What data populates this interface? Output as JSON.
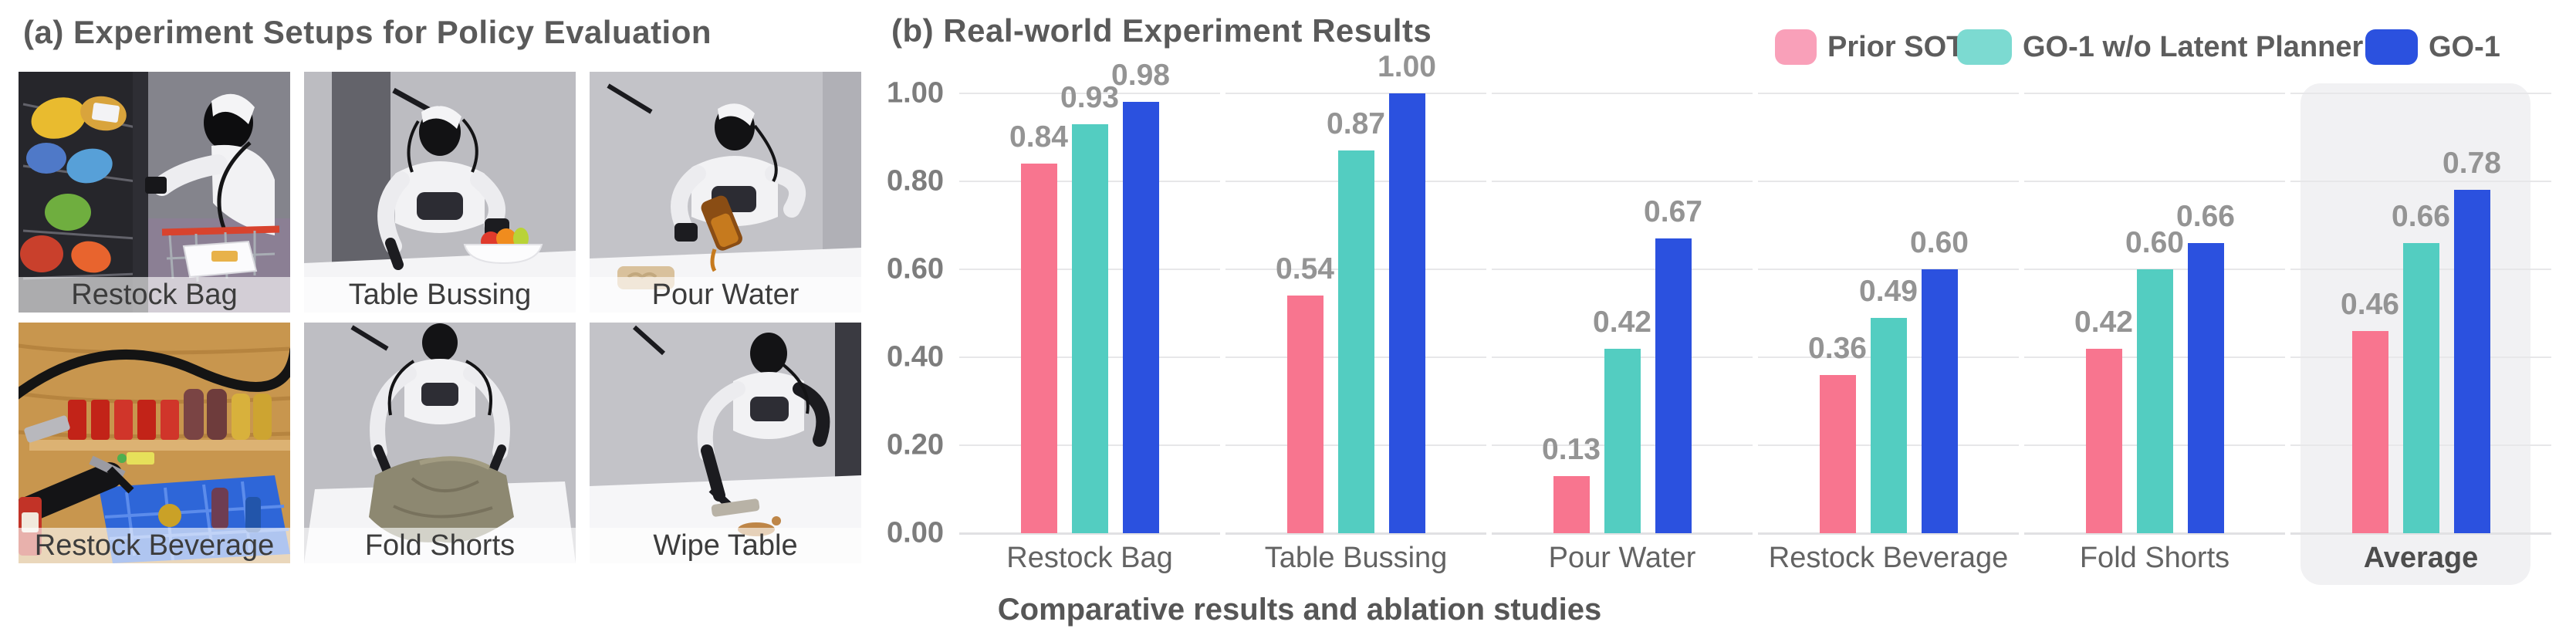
{
  "panel_a": {
    "title": "(a) Experiment Setups for Policy Evaluation",
    "tiles": [
      {
        "label": "Restock Bag",
        "scene": "restock-bag"
      },
      {
        "label": "Table Bussing",
        "scene": "table-bussing"
      },
      {
        "label": "Pour Water",
        "scene": "pour-water"
      },
      {
        "label": "Restock Beverage",
        "scene": "restock-beverage"
      },
      {
        "label": "Fold Shorts",
        "scene": "fold-shorts"
      },
      {
        "label": "Wipe Table",
        "scene": "wipe-table"
      }
    ]
  },
  "panel_b": {
    "title": "(b) Real-world Experiment Results"
  },
  "chart_data": {
    "type": "bar",
    "title": "(b) Real-world Experiment Results",
    "categories": [
      "Restock Bag",
      "Table Bussing",
      "Pour Water",
      "Restock Beverage",
      "Fold Shorts",
      "Average"
    ],
    "series": [
      {
        "name": "Prior SOTA",
        "color": "#F8758F",
        "legend_color": "#F9A0B9",
        "values": [
          0.84,
          0.54,
          0.13,
          0.36,
          0.42,
          0.46
        ]
      },
      {
        "name": "GO-1 w/o Latent Planner",
        "color": "#53CDC1",
        "legend_color": "#7CDAD1",
        "values": [
          0.93,
          0.87,
          0.42,
          0.49,
          0.6,
          0.66
        ]
      },
      {
        "name": "GO-1",
        "color": "#2B51DF",
        "legend_color": "#2B51DF",
        "values": [
          0.98,
          1.0,
          0.67,
          0.6,
          0.66,
          0.78
        ]
      }
    ],
    "ylim": [
      0,
      1
    ],
    "yticks": [
      "0.00",
      "0.20",
      "0.40",
      "0.60",
      "0.80",
      "1.00"
    ],
    "grid": "horizontal",
    "legend_position": "top-right",
    "value_labels": true,
    "highlighted_category": "Average",
    "highlight_color": "#f1f1f3",
    "xlabel": "Comparative results and ablation studies"
  }
}
